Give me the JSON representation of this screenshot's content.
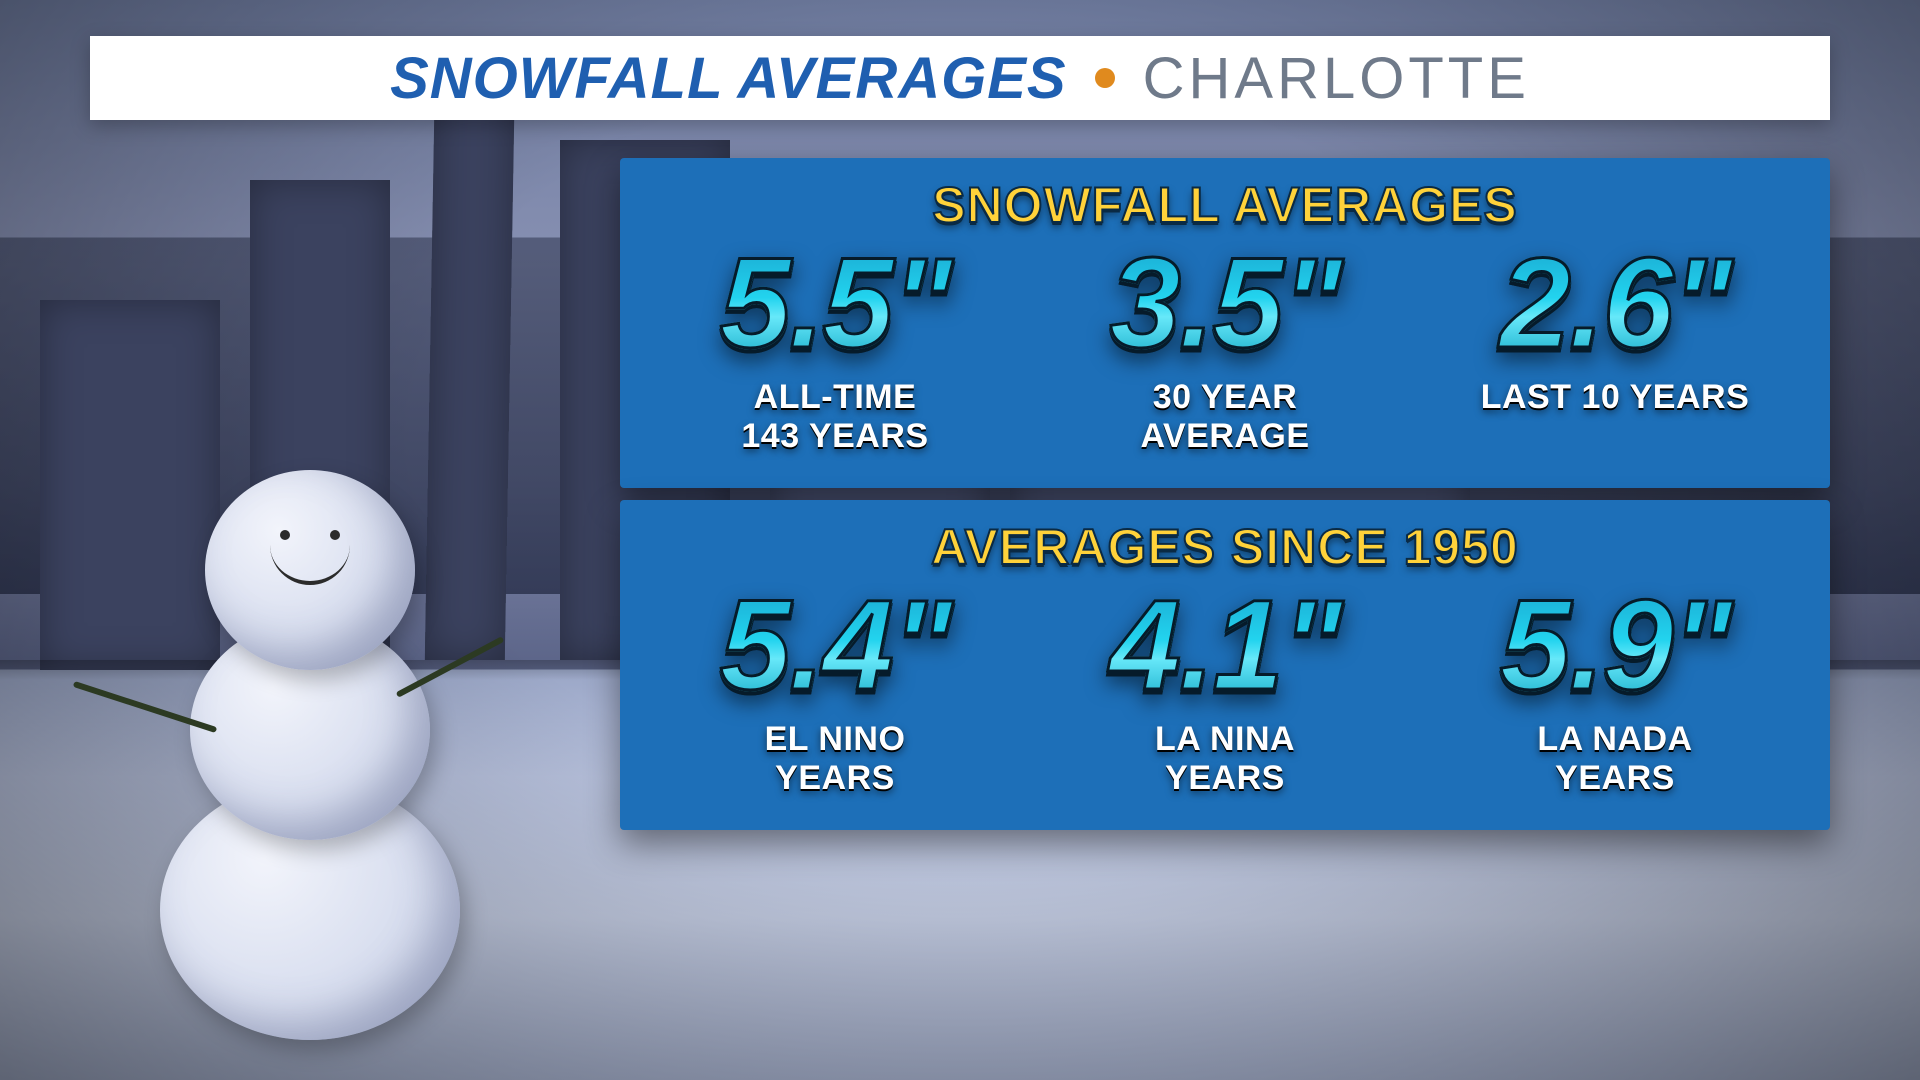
{
  "titlebar": {
    "main": "SNOWFALL AVERAGES",
    "sub": "CHARLOTTE",
    "dot_color": "#e08a1e",
    "main_color": "#1f5fb0",
    "sub_color": "#6f7a8a",
    "bg_color": "#ffffff"
  },
  "panel_style": {
    "bg_color": "#1d6fb8",
    "title_color": "#ffd23a",
    "title_stroke": "#0a2a44",
    "value_gradient_top": "#1aa7d0",
    "value_gradient_mid": "#22d3ee",
    "value_gradient_mid2": "#67e8f9",
    "value_gradient_bot": "#0ea5c4",
    "value_stroke": "#061b2a",
    "label_color": "#ffffff"
  },
  "top": {
    "title": "SNOWFALL AVERAGES",
    "items": [
      {
        "value": "5.5\"",
        "label_line1": "ALL-TIME",
        "label_line2": "143 YEARS"
      },
      {
        "value": "3.5\"",
        "label_line1": "30 YEAR",
        "label_line2": "AVERAGE"
      },
      {
        "value": "2.6\"",
        "label_line1": "LAST 10 YEARS",
        "label_line2": ""
      }
    ]
  },
  "bottom": {
    "title": "AVERAGES SINCE 1950",
    "items": [
      {
        "value": "5.4\"",
        "label_line1": "EL NINO",
        "label_line2": "YEARS"
      },
      {
        "value": "4.1\"",
        "label_line1": "LA NINA",
        "label_line2": "YEARS"
      },
      {
        "value": "5.9\"",
        "label_line1": "LA NADA",
        "label_line2": "YEARS"
      }
    ]
  }
}
